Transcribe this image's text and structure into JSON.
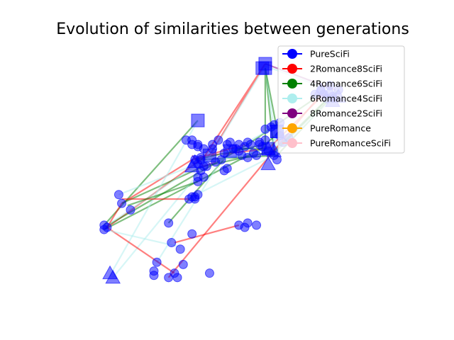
{
  "chart_data": {
    "type": "scatter",
    "title": "Evolution of similarities between generations",
    "xlabel": "",
    "ylabel": "",
    "axes_visible": false,
    "grid": false,
    "legend_position": "top-right",
    "series": [
      {
        "name": "PureSciFi",
        "color": "#0000ff"
      },
      {
        "name": "2Romance8SciFi",
        "color": "#ff0000"
      },
      {
        "name": "4Romance6SciFi",
        "color": "#008000"
      },
      {
        "name": "6Romance4SciFi",
        "color": "#aeeeee"
      },
      {
        "name": "8Romance2SciFi",
        "color": "#800080"
      },
      {
        "name": "PureRomance",
        "color": "#ffa500"
      },
      {
        "name": "PureRomanceSciFi",
        "color": "#ffc0cb"
      }
    ],
    "points": [
      {
        "x": 0.23,
        "y": 0.03,
        "m": "circle"
      },
      {
        "x": 0.23,
        "y": 0.05,
        "m": "circle"
      },
      {
        "x": 0.24,
        "y": 0.09,
        "m": "circle"
      },
      {
        "x": 0.28,
        "y": 0.02,
        "m": "circle"
      },
      {
        "x": 0.3,
        "y": 0.04,
        "m": "circle"
      },
      {
        "x": 0.31,
        "y": 0.02,
        "m": "circle"
      },
      {
        "x": 0.33,
        "y": 0.08,
        "m": "circle"
      },
      {
        "x": 0.42,
        "y": 0.04,
        "m": "circle"
      },
      {
        "x": 0.29,
        "y": 0.18,
        "m": "circle"
      },
      {
        "x": 0.32,
        "y": 0.15,
        "m": "circle"
      },
      {
        "x": 0.36,
        "y": 0.22,
        "m": "circle"
      },
      {
        "x": 0.28,
        "y": 0.27,
        "m": "circle"
      },
      {
        "x": 0.52,
        "y": 0.26,
        "m": "circle"
      },
      {
        "x": 0.54,
        "y": 0.25,
        "m": "circle"
      },
      {
        "x": 0.55,
        "y": 0.27,
        "m": "circle"
      },
      {
        "x": 0.58,
        "y": 0.26,
        "m": "circle"
      },
      {
        "x": 0.53,
        "y": 0.58,
        "m": "circle"
      },
      {
        "x": 0.54,
        "y": 0.62,
        "m": "circle"
      },
      {
        "x": 0.55,
        "y": 0.57,
        "m": "circle"
      },
      {
        "x": 0.51,
        "y": 0.61,
        "m": "circle"
      },
      {
        "x": 0.56,
        "y": 0.63,
        "m": "circle"
      },
      {
        "x": 0.52,
        "y": 0.63,
        "m": "circle"
      },
      {
        "x": 0.47,
        "y": 0.59,
        "m": "circle"
      },
      {
        "x": 0.6,
        "y": 0.62,
        "m": "circle"
      },
      {
        "x": 0.62,
        "y": 0.6,
        "m": "circle"
      },
      {
        "x": 0.65,
        "y": 0.56,
        "m": "circle"
      },
      {
        "x": 0.67,
        "y": 0.64,
        "m": "circle"
      },
      {
        "x": 0.66,
        "y": 0.67,
        "m": "circle"
      },
      {
        "x": 0.63,
        "y": 0.71,
        "m": "circle"
      },
      {
        "x": 0.64,
        "y": 0.58,
        "m": "circle"
      },
      {
        "x": 0.59,
        "y": 0.63,
        "m": "circle"
      },
      {
        "x": 0.49,
        "y": 0.64,
        "m": "circle"
      },
      {
        "x": 0.5,
        "y": 0.61,
        "m": "circle"
      },
      {
        "x": 0.57,
        "y": 0.59,
        "m": "circle"
      },
      {
        "x": 0.58,
        "y": 0.58,
        "m": "circle"
      },
      {
        "x": 0.52,
        "y": 0.6,
        "m": "circle"
      },
      {
        "x": 0.66,
        "y": 0.73,
        "m": "circle"
      },
      {
        "x": 0.61,
        "y": 0.65,
        "m": "circle"
      },
      {
        "x": 0.45,
        "y": 0.65,
        "m": "circle"
      },
      {
        "x": 0.43,
        "y": 0.63,
        "m": "circle"
      },
      {
        "x": 0.43,
        "y": 0.61,
        "m": "circle"
      },
      {
        "x": 0.48,
        "y": 0.63,
        "m": "circle"
      },
      {
        "x": 0.4,
        "y": 0.61,
        "m": "circle"
      },
      {
        "x": 0.38,
        "y": 0.63,
        "m": "circle"
      },
      {
        "x": 0.38,
        "y": 0.62,
        "m": "circle"
      },
      {
        "x": 0.36,
        "y": 0.63,
        "m": "circle"
      },
      {
        "x": 0.39,
        "y": 0.57,
        "m": "circle"
      },
      {
        "x": 0.37,
        "y": 0.56,
        "m": "circle"
      },
      {
        "x": 0.36,
        "y": 0.65,
        "m": "circle"
      },
      {
        "x": 0.39,
        "y": 0.56,
        "m": "circle"
      },
      {
        "x": 0.34,
        "y": 0.65,
        "m": "circle"
      },
      {
        "x": 0.38,
        "y": 0.46,
        "m": "circle"
      },
      {
        "x": 0.38,
        "y": 0.48,
        "m": "circle"
      },
      {
        "x": 0.4,
        "y": 0.48,
        "m": "circle"
      },
      {
        "x": 0.39,
        "y": 0.51,
        "m": "circle"
      },
      {
        "x": 0.4,
        "y": 0.53,
        "m": "circle"
      },
      {
        "x": 0.41,
        "y": 0.53,
        "m": "circle"
      },
      {
        "x": 0.38,
        "y": 0.54,
        "m": "circle"
      },
      {
        "x": 0.44,
        "y": 0.55,
        "m": "circle"
      },
      {
        "x": 0.46,
        "y": 0.56,
        "m": "circle"
      },
      {
        "x": 0.48,
        "y": 0.52,
        "m": "circle"
      },
      {
        "x": 0.47,
        "y": 0.51,
        "m": "circle"
      },
      {
        "x": 0.61,
        "y": 0.7,
        "m": "circle"
      },
      {
        "x": 0.64,
        "y": 0.72,
        "m": "circle"
      },
      {
        "x": 0.69,
        "y": 0.66,
        "m": "circle"
      },
      {
        "x": 0.59,
        "y": 0.64,
        "m": "circle"
      },
      {
        "x": 0.55,
        "y": 0.64,
        "m": "circle"
      },
      {
        "x": 0.35,
        "y": 0.38,
        "m": "circle"
      },
      {
        "x": 0.36,
        "y": 0.39,
        "m": "circle"
      },
      {
        "x": 0.37,
        "y": 0.39,
        "m": "circle"
      },
      {
        "x": 0.38,
        "y": 0.4,
        "m": "circle"
      },
      {
        "x": 0.37,
        "y": 0.38,
        "m": "circle"
      },
      {
        "x": 0.12,
        "y": 0.36,
        "m": "circle"
      },
      {
        "x": 0.15,
        "y": 0.33,
        "m": "circle"
      },
      {
        "x": 0.8,
        "y": 0.88,
        "m": "circle"
      },
      {
        "x": 0.81,
        "y": 0.86,
        "m": "circle"
      },
      {
        "x": 0.83,
        "y": 0.9,
        "m": "circle"
      },
      {
        "x": 0.84,
        "y": 0.85,
        "m": "circle"
      },
      {
        "x": 0.86,
        "y": 0.88,
        "m": "circle"
      },
      {
        "x": 0.82,
        "y": 0.84,
        "m": "circle"
      },
      {
        "x": 0.78,
        "y": 0.86,
        "m": "circle"
      },
      {
        "x": 0.06,
        "y": 0.24,
        "m": "circle"
      },
      {
        "x": 0.06,
        "y": 0.26,
        "m": "circle"
      },
      {
        "x": 0.07,
        "y": 0.25,
        "m": "circle"
      },
      {
        "x": 0.11,
        "y": 0.4,
        "m": "circle"
      },
      {
        "x": 0.61,
        "y": 1.0,
        "m": "square"
      },
      {
        "x": 0.6,
        "y": 0.98,
        "m": "square"
      },
      {
        "x": 0.61,
        "y": 0.98,
        "m": "square"
      },
      {
        "x": 0.38,
        "y": 0.74,
        "m": "square"
      },
      {
        "x": 0.65,
        "y": 0.69,
        "m": "square"
      },
      {
        "x": 0.65,
        "y": 0.69,
        "m": "square"
      },
      {
        "x": 0.49,
        "y": 0.6,
        "m": "square"
      },
      {
        "x": 0.42,
        "y": 0.58,
        "m": "square"
      },
      {
        "x": 0.62,
        "y": 0.61,
        "m": "square"
      },
      {
        "x": 0.08,
        "y": 0.04,
        "m": "triangle"
      },
      {
        "x": 0.09,
        "y": 0.02,
        "m": "triangle"
      },
      {
        "x": 0.36,
        "y": 0.53,
        "m": "triangle"
      },
      {
        "x": 0.37,
        "y": 0.55,
        "m": "triangle"
      },
      {
        "x": 0.62,
        "y": 0.54,
        "m": "triangle"
      },
      {
        "x": 0.62,
        "y": 0.61,
        "m": "triangle"
      },
      {
        "x": 0.64,
        "y": 0.6,
        "m": "triangle"
      },
      {
        "x": 0.84,
        "y": 0.83,
        "m": "triangle"
      },
      {
        "x": 0.86,
        "y": 0.85,
        "m": "triangle"
      },
      {
        "x": 0.83,
        "y": 0.87,
        "m": "triangle"
      },
      {
        "x": 0.8,
        "y": 0.88,
        "m": "triangle"
      }
    ],
    "lines": [
      {
        "s": 1,
        "pts": [
          [
            0.06,
            0.24
          ],
          [
            0.4,
            0.57
          ],
          [
            0.61,
            1.0
          ],
          [
            0.42,
            0.58
          ],
          [
            0.62,
            0.61
          ],
          [
            0.81,
            0.86
          ]
        ]
      },
      {
        "s": 1,
        "pts": [
          [
            0.12,
            0.36
          ],
          [
            0.36,
            0.56
          ],
          [
            0.54,
            0.63
          ]
        ]
      },
      {
        "s": 2,
        "pts": [
          [
            0.06,
            0.26
          ],
          [
            0.38,
            0.74
          ]
        ]
      },
      {
        "s": 2,
        "pts": [
          [
            0.06,
            0.24
          ],
          [
            0.61,
            0.62
          ],
          [
            0.61,
            0.98
          ],
          [
            0.64,
            0.59
          ],
          [
            0.84,
            0.86
          ]
        ]
      },
      {
        "s": 2,
        "pts": [
          [
            0.12,
            0.36
          ],
          [
            0.4,
            0.53
          ],
          [
            0.64,
            0.6
          ],
          [
            0.83,
            0.85
          ]
        ]
      },
      {
        "s": 2,
        "pts": [
          [
            0.37,
            0.56
          ],
          [
            0.61,
            0.63
          ],
          [
            0.66,
            0.69
          ]
        ]
      },
      {
        "s": 2,
        "pts": [
          [
            0.28,
            0.27
          ],
          [
            0.5,
            0.61
          ],
          [
            0.62,
            0.61
          ]
        ]
      },
      {
        "s": 2,
        "pts": [
          [
            0.39,
            0.56
          ],
          [
            0.65,
            0.58
          ],
          [
            0.86,
            0.88
          ]
        ]
      },
      {
        "s": 2,
        "pts": [
          [
            0.06,
            0.25
          ],
          [
            0.55,
            0.63
          ],
          [
            0.8,
            0.86
          ]
        ]
      },
      {
        "s": 3,
        "pts": [
          [
            0.08,
            0.03
          ],
          [
            0.38,
            0.74
          ]
        ]
      },
      {
        "s": 3,
        "pts": [
          [
            0.09,
            0.02
          ],
          [
            0.39,
            0.51
          ],
          [
            0.61,
            0.99
          ],
          [
            0.65,
            0.6
          ],
          [
            0.84,
            0.84
          ]
        ]
      },
      {
        "s": 3,
        "pts": [
          [
            0.06,
            0.25
          ],
          [
            0.38,
            0.54
          ],
          [
            0.62,
            0.61
          ],
          [
            0.67,
            0.71
          ]
        ]
      },
      {
        "s": 3,
        "pts": [
          [
            0.24,
            0.09
          ],
          [
            0.46,
            0.56
          ],
          [
            0.66,
            0.62
          ],
          [
            0.66,
            0.72
          ]
        ]
      },
      {
        "s": 3,
        "pts": [
          [
            0.61,
            0.99
          ],
          [
            0.85,
            0.87
          ]
        ]
      },
      {
        "s": 3,
        "pts": [
          [
            0.11,
            0.4
          ],
          [
            0.49,
            0.6
          ],
          [
            0.63,
            0.7
          ]
        ]
      },
      {
        "s": 4,
        "pts": [
          [
            0.61,
            1.0
          ],
          [
            0.85,
            0.88
          ]
        ]
      },
      {
        "s": 4,
        "pts": [
          [
            0.36,
            0.58
          ],
          [
            0.4,
            0.53
          ],
          [
            0.44,
            0.55
          ]
        ]
      },
      {
        "s": 4,
        "pts": [
          [
            0.37,
            0.39
          ],
          [
            0.38,
            0.4
          ]
        ]
      },
      {
        "s": 1,
        "pts": [
          [
            0.28,
            0.02
          ],
          [
            0.8,
            0.86
          ]
        ]
      },
      {
        "s": 1,
        "pts": [
          [
            0.3,
            0.04
          ],
          [
            0.07,
            0.25
          ],
          [
            0.12,
            0.36
          ]
        ]
      },
      {
        "s": 1,
        "pts": [
          [
            0.35,
            0.38
          ],
          [
            0.12,
            0.38
          ]
        ]
      },
      {
        "s": 1,
        "pts": [
          [
            0.52,
            0.26
          ],
          [
            0.3,
            0.18
          ]
        ]
      },
      {
        "s": 2,
        "pts": [
          [
            0.14,
            0.35
          ],
          [
            0.38,
            0.46
          ]
        ]
      },
      {
        "s": 3,
        "pts": [
          [
            0.06,
            0.24
          ],
          [
            0.32,
            0.16
          ]
        ]
      },
      {
        "s": 3,
        "pts": [
          [
            0.36,
            0.39
          ],
          [
            0.64,
            0.58
          ]
        ]
      },
      {
        "s": 2,
        "pts": [
          [
            0.61,
            0.98
          ],
          [
            0.65,
            0.7
          ]
        ]
      }
    ]
  }
}
